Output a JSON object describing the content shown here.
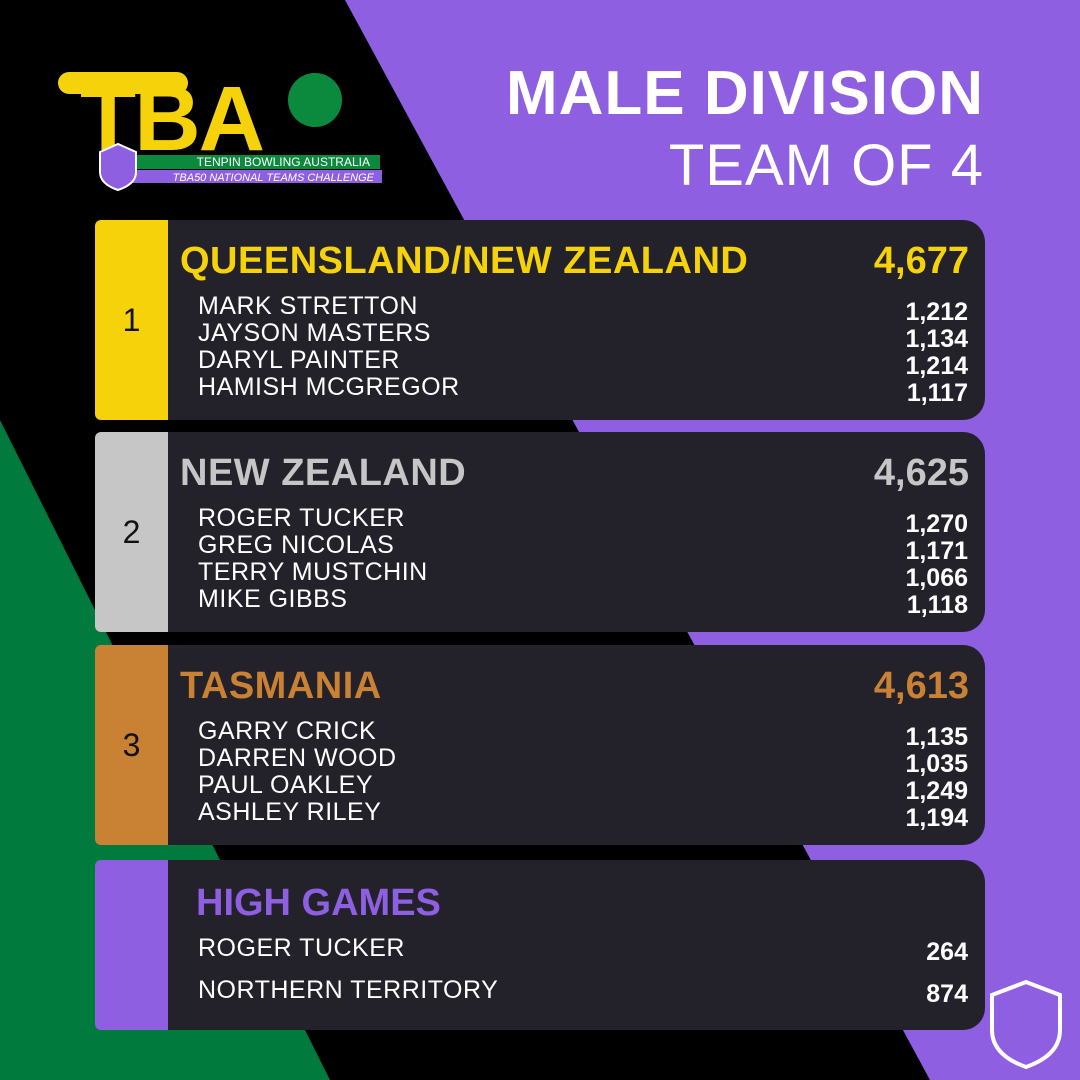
{
  "logo": {
    "mark": "TBA",
    "name": "TENPIN BOWLING AUSTRALIA",
    "event": "TBA50 NATIONAL TEAMS CHALLENGE"
  },
  "header": {
    "title": "MALE DIVISION",
    "subtitle": "TEAM OF 4"
  },
  "teams": [
    {
      "rank": "1",
      "name": "QUEENSLAND/NEW ZEALAND",
      "total": "4,677",
      "color": "#f5d20a",
      "players": [
        {
          "name": "MARK STRETTON",
          "score": "1,212"
        },
        {
          "name": "JAYSON MASTERS",
          "score": "1,134"
        },
        {
          "name": "DARYL PAINTER",
          "score": "1,214"
        },
        {
          "name": "HAMISH MCGREGOR",
          "score": "1,117"
        }
      ]
    },
    {
      "rank": "2",
      "name": "NEW ZEALAND",
      "total": "4,625",
      "color": "#c6c6c6",
      "players": [
        {
          "name": "ROGER TUCKER",
          "score": "1,270"
        },
        {
          "name": "GREG NICOLAS",
          "score": "1,171"
        },
        {
          "name": "TERRY MUSTCHIN",
          "score": "1,066"
        },
        {
          "name": "MIKE GIBBS",
          "score": "1,118"
        }
      ]
    },
    {
      "rank": "3",
      "name": "TASMANIA",
      "total": "4,613",
      "color": "#c98134",
      "players": [
        {
          "name": "GARRY CRICK",
          "score": "1,135"
        },
        {
          "name": "DARREN WOOD",
          "score": "1,035"
        },
        {
          "name": "PAUL OAKLEY",
          "score": "1,249"
        },
        {
          "name": "ASHLEY RILEY",
          "score": "1,194"
        }
      ]
    }
  ],
  "high_games": {
    "title": "HIGH GAMES",
    "color": "#8e5fe0",
    "entries": [
      {
        "name": "ROGER TUCKER",
        "score": "264"
      },
      {
        "name": "NORTHERN TERRITORY",
        "score": "874"
      }
    ]
  }
}
